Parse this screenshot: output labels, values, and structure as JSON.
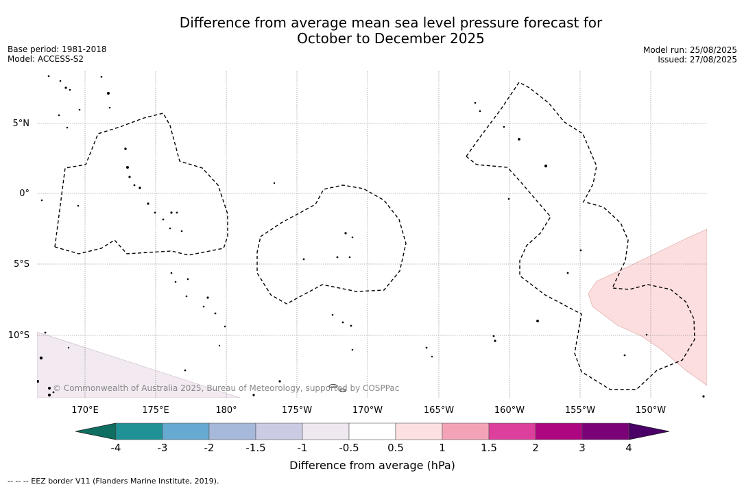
{
  "title_line1": "Difference from average mean sea level pressure forecast for",
  "title_line2": "October to December 2025",
  "base_period": "Base period: 1981-2018",
  "model": "Model: ACCESS-S2",
  "model_run": "Model run: 25/08/2025",
  "issued": "Issued: 27/08/2025",
  "copyright": "© Commonwealth of Australia 2025, Bureau of Meteorology, supported by COSPPac",
  "lat_labels": [
    "5°N",
    "0°",
    "5°S",
    "10°S"
  ],
  "lon_labels": [
    "170°E",
    "175°E",
    "180°",
    "175°W",
    "170°W",
    "165°W",
    "160°W",
    "155°W",
    "150°W"
  ],
  "colorbar": {
    "ticks": [
      "-4",
      "-3",
      "-2",
      "-1.5",
      "-1",
      "-0.5",
      "0.5",
      "1",
      "1.5",
      "2",
      "3",
      "4"
    ],
    "colors": [
      "#1f9296",
      "#66aad1",
      "#a7b9da",
      "#cbcce4",
      "#efe8f1",
      "#ffffff",
      "#fde1e1",
      "#f4a3b6",
      "#dd3f9c",
      "#ad0680",
      "#7a0177"
    ],
    "under_color": "#0e6e62",
    "over_color": "#4a0067",
    "label": "Difference from average (hPa)"
  },
  "map_fills": {
    "pink_region_color": "#fcdede",
    "lavender_region_color": "#f2e9f1"
  },
  "footnote": "--  --  -- EEZ border V11 (Flanders Marine Institute, 2019)."
}
